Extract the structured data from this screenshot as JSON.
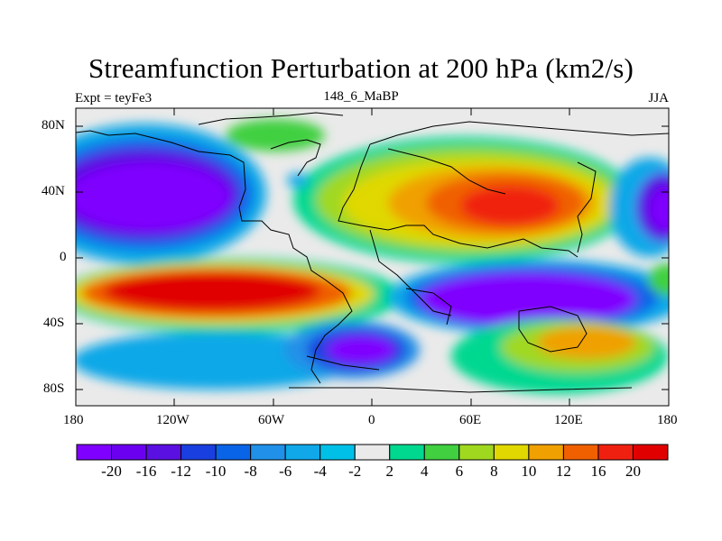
{
  "title": "Streamfunction Perturbation at 200 hPa (km2/s)",
  "subtitle_left": "Expt = teyFe3",
  "subtitle_center": "148_6_MaBP",
  "subtitle_right": "JJA",
  "axes": {
    "lat_ticks": [
      "80N",
      "40N",
      "0",
      "40S",
      "80S"
    ],
    "lon_ticks": [
      "180",
      "120W",
      "60W",
      "0",
      "60E",
      "120E",
      "180"
    ]
  },
  "colorbar": {
    "labels": [
      "-20",
      "-16",
      "-12",
      "-10",
      "-8",
      "-6",
      "-4",
      "-2",
      "2",
      "4",
      "6",
      "8",
      "10",
      "12",
      "16",
      "20"
    ],
    "colors": [
      "#7f00ff",
      "#6a00ef",
      "#5a10e0",
      "#1a3fe0",
      "#0a64e8",
      "#2090e8",
      "#10a8e8",
      "#00c0e8",
      "#eaeaea",
      "#00d890",
      "#40d040",
      "#a0d820",
      "#e0d800",
      "#f0a000",
      "#f06000",
      "#f02010",
      "#e00000"
    ]
  },
  "chart_data": {
    "type": "heatmap",
    "title": "Streamfunction Perturbation at 200 hPa (km2/s)",
    "x_range": [
      -180,
      180
    ],
    "y_range": [
      -90,
      90
    ],
    "levels": [
      -20,
      -16,
      -12,
      -10,
      -8,
      -6,
      -4,
      -2,
      2,
      4,
      6,
      8,
      10,
      12,
      16,
      20
    ],
    "features": [
      {
        "lon": -130,
        "lat": 32,
        "value": -20
      },
      {
        "lon": 180,
        "lat": 30,
        "value": -20
      },
      {
        "lon": 75,
        "lat": 30,
        "value": 16
      },
      {
        "lon": 40,
        "lat": 25,
        "value": 10
      },
      {
        "lon": -100,
        "lat": -20,
        "value": 20
      },
      {
        "lon": -160,
        "lat": -20,
        "value": 12
      },
      {
        "lon": 75,
        "lat": -25,
        "value": -20
      },
      {
        "lon": -25,
        "lat": -55,
        "value": -20
      },
      {
        "lon": 100,
        "lat": -55,
        "value": 10
      },
      {
        "lon": 30,
        "lat": -55,
        "value": 4
      },
      {
        "lon": -60,
        "lat": 70,
        "value": 4
      },
      {
        "lon": 175,
        "lat": -15,
        "value": 6
      },
      {
        "lon": -170,
        "lat": -40,
        "value": -6
      }
    ]
  }
}
